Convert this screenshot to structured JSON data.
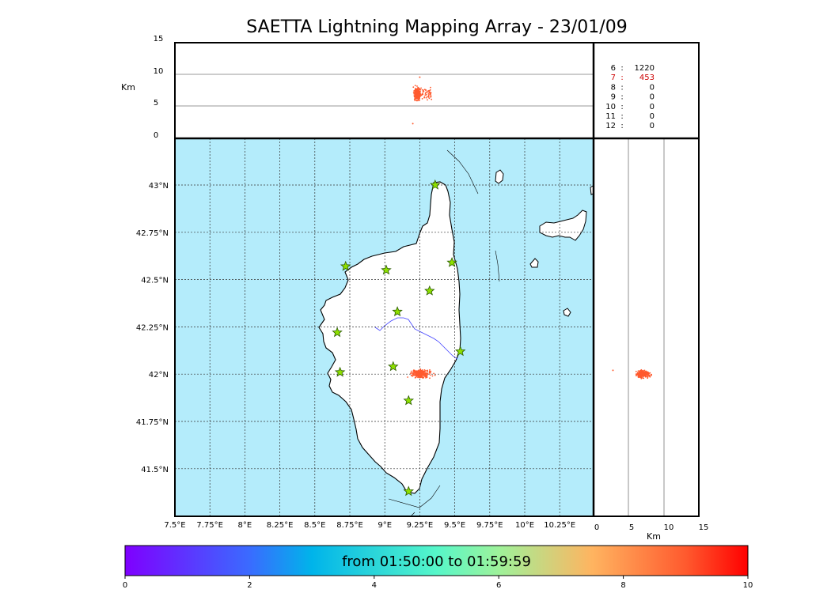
{
  "title": "SAETTA Lightning Mapping Array - 23/01/09",
  "colors": {
    "sea": "#b4ecfb",
    "land": "#ffffff",
    "strike": "#ff5a2e",
    "station_fill": "#8ee000",
    "river": "#4444ff",
    "grid": "#333333"
  },
  "chart_data": [
    {
      "panel": "altitude-longitude",
      "type": "scatter",
      "ylabel": "Km",
      "yticks": [
        "0",
        "5",
        "10",
        "15"
      ],
      "ylim": [
        0,
        15
      ],
      "xlim": [
        7.5,
        10.5
      ],
      "gridlines_y": [
        5,
        10
      ],
      "points_summary": "cluster near 9.23°E, altitude 2.5–9.5 km (mostly 5.5–8 km)"
    },
    {
      "panel": "altitude-latitude",
      "type": "scatter",
      "xlabel": "Km",
      "xticks": [
        "0",
        "5",
        "10",
        "15"
      ],
      "xlim": [
        0,
        15
      ],
      "ylim": [
        41.25,
        43.25
      ],
      "gridlines_x": [
        5,
        10
      ],
      "points_summary": "cluster near 42.0°N, altitude 4.5–9 km, one outlier at 2.5 km"
    },
    {
      "panel": "plan-view-map",
      "type": "scatter",
      "xticks": [
        "7.5°E",
        "7.75°E",
        "8°E",
        "8.25°E",
        "8.5°E",
        "8.75°E",
        "9°E",
        "9.25°E",
        "9.5°E",
        "9.75°E",
        "10°E",
        "10.25°E"
      ],
      "yticks": [
        "41.5°N",
        "41.75°N",
        "42°N",
        "42.25°N",
        "42.5°N",
        "42.75°N",
        "43°N"
      ],
      "xlim": [
        7.5,
        10.5
      ],
      "ylim": [
        41.25,
        43.25
      ],
      "stations": [
        {
          "lon": 9.36,
          "lat": 43.0
        },
        {
          "lon": 8.72,
          "lat": 42.57
        },
        {
          "lon": 9.01,
          "lat": 42.55
        },
        {
          "lon": 9.48,
          "lat": 42.59
        },
        {
          "lon": 9.32,
          "lat": 42.44
        },
        {
          "lon": 9.09,
          "lat": 42.33
        },
        {
          "lon": 8.66,
          "lat": 42.22
        },
        {
          "lon": 9.54,
          "lat": 42.12
        },
        {
          "lon": 9.06,
          "lat": 42.04
        },
        {
          "lon": 8.68,
          "lat": 42.01
        },
        {
          "lon": 9.17,
          "lat": 41.86
        },
        {
          "lon": 9.17,
          "lat": 41.38
        }
      ],
      "strike_cluster": {
        "lon_range": [
          9.17,
          9.38
        ],
        "lat_range": [
          41.96,
          42.05
        ]
      }
    },
    {
      "panel": "counts-per-altitude",
      "type": "table",
      "rows": [
        {
          "level": "6",
          "count": "1220",
          "highlight": false
        },
        {
          "level": "7",
          "count": "453",
          "highlight": true
        },
        {
          "level": "8",
          "count": "0",
          "highlight": false
        },
        {
          "level": "9",
          "count": "0",
          "highlight": false
        },
        {
          "level": "10",
          "count": "0",
          "highlight": false
        },
        {
          "level": "11",
          "count": "0",
          "highlight": false
        },
        {
          "level": "12",
          "count": "0",
          "highlight": false
        }
      ]
    },
    {
      "panel": "colorbar",
      "type": "heatmap",
      "label": "from 01:50:00 to 01:59:59",
      "ticks": [
        "0",
        "2",
        "4",
        "6",
        "8",
        "10"
      ],
      "range": [
        0,
        10
      ]
    }
  ]
}
